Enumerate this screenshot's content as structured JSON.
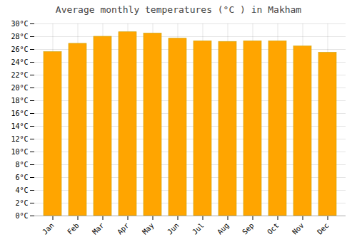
{
  "chart_data": {
    "type": "bar",
    "title": "Average monthly temperatures (°C ) in Makham",
    "categories": [
      "Jan",
      "Feb",
      "Mar",
      "Apr",
      "May",
      "Jun",
      "Jul",
      "Aug",
      "Sep",
      "Oct",
      "Nov",
      "Dec"
    ],
    "values": [
      25.6,
      26.9,
      28.0,
      28.7,
      28.5,
      27.7,
      27.3,
      27.2,
      27.3,
      27.3,
      26.5,
      25.5
    ],
    "color": "#FFA500",
    "ylim": [
      0,
      30
    ],
    "yticks": [
      {
        "value": 0,
        "label": "0°C"
      },
      {
        "value": 2,
        "label": "2°C"
      },
      {
        "value": 4,
        "label": "4°C"
      },
      {
        "value": 6,
        "label": "6°C"
      },
      {
        "value": 8,
        "label": "8°C"
      },
      {
        "value": 10,
        "label": "10°C"
      },
      {
        "value": 12,
        "label": "12°C"
      },
      {
        "value": 14,
        "label": "14°C"
      },
      {
        "value": 16,
        "label": "16°C"
      },
      {
        "value": 18,
        "label": "18°C"
      },
      {
        "value": 20,
        "label": "20°C"
      },
      {
        "value": 22,
        "label": "22°C"
      },
      {
        "value": 24,
        "label": "24°C"
      },
      {
        "value": 26,
        "label": "26°C"
      },
      {
        "value": 28,
        "label": "28°C"
      },
      {
        "value": 30,
        "label": "30°C"
      }
    ],
    "grid": true
  }
}
